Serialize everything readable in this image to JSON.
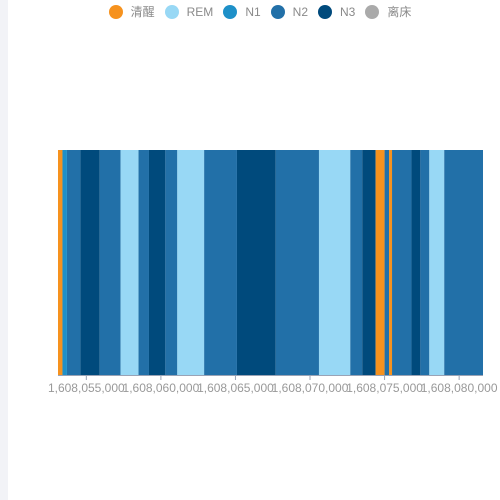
{
  "chart_data": {
    "type": "bar",
    "title": "",
    "xlabel": "",
    "ylabel": "",
    "legend_position": "top-center",
    "grid": false,
    "stages": [
      {
        "name": "清醒",
        "color": "#f6921e"
      },
      {
        "name": "REM",
        "color": "#98d8f5"
      },
      {
        "name": "N1",
        "color": "#1e90c8"
      },
      {
        "name": "N2",
        "color": "#2270a8"
      },
      {
        "name": "N3",
        "color": "#004a7c"
      },
      {
        "name": "离床",
        "color": "#aaaaaa"
      }
    ],
    "xlim": [
      1608053100,
      1608081600
    ],
    "x_ticks": [
      1608055000,
      1608060000,
      1608065000,
      1608070000,
      1608075000,
      1608080000
    ],
    "x_tick_labels": [
      "1,608,055,000",
      "1,608,060,000",
      "1,608,065,000",
      "1,608,070,000",
      "1,608,075,000",
      "1,608,080,000"
    ],
    "segments": [
      {
        "stage": "清醒",
        "start": 1608053100,
        "end": 1608053400
      },
      {
        "stage": "N1",
        "start": 1608053400,
        "end": 1608053700
      },
      {
        "stage": "N2",
        "start": 1608053700,
        "end": 1608054600
      },
      {
        "stage": "N3",
        "start": 1608054600,
        "end": 1608055900
      },
      {
        "stage": "N2",
        "start": 1608055900,
        "end": 1608057300
      },
      {
        "stage": "REM",
        "start": 1608057300,
        "end": 1608058500
      },
      {
        "stage": "N2",
        "start": 1608058500,
        "end": 1608059200
      },
      {
        "stage": "N3",
        "start": 1608059200,
        "end": 1608060300
      },
      {
        "stage": "N2",
        "start": 1608060300,
        "end": 1608061100
      },
      {
        "stage": "REM",
        "start": 1608061100,
        "end": 1608062900
      },
      {
        "stage": "N2",
        "start": 1608062900,
        "end": 1608065100
      },
      {
        "stage": "N3",
        "start": 1608065100,
        "end": 1608067700
      },
      {
        "stage": "N2",
        "start": 1608067700,
        "end": 1608070600
      },
      {
        "stage": "REM",
        "start": 1608070600,
        "end": 1608072700
      },
      {
        "stage": "N2",
        "start": 1608072700,
        "end": 1608073500
      },
      {
        "stage": "N3",
        "start": 1608073500,
        "end": 1608074400
      },
      {
        "stage": "清醒",
        "start": 1608074400,
        "end": 1608075000
      },
      {
        "stage": "N2",
        "start": 1608075000,
        "end": 1608075300
      },
      {
        "stage": "清醒",
        "start": 1608075300,
        "end": 1608075500
      },
      {
        "stage": "N2",
        "start": 1608075500,
        "end": 1608076800
      },
      {
        "stage": "N3",
        "start": 1608076800,
        "end": 1608077400
      },
      {
        "stage": "N2",
        "start": 1608077400,
        "end": 1608078000
      },
      {
        "stage": "REM",
        "start": 1608078000,
        "end": 1608079000
      },
      {
        "stage": "N2",
        "start": 1608079000,
        "end": 1608081600
      }
    ]
  }
}
